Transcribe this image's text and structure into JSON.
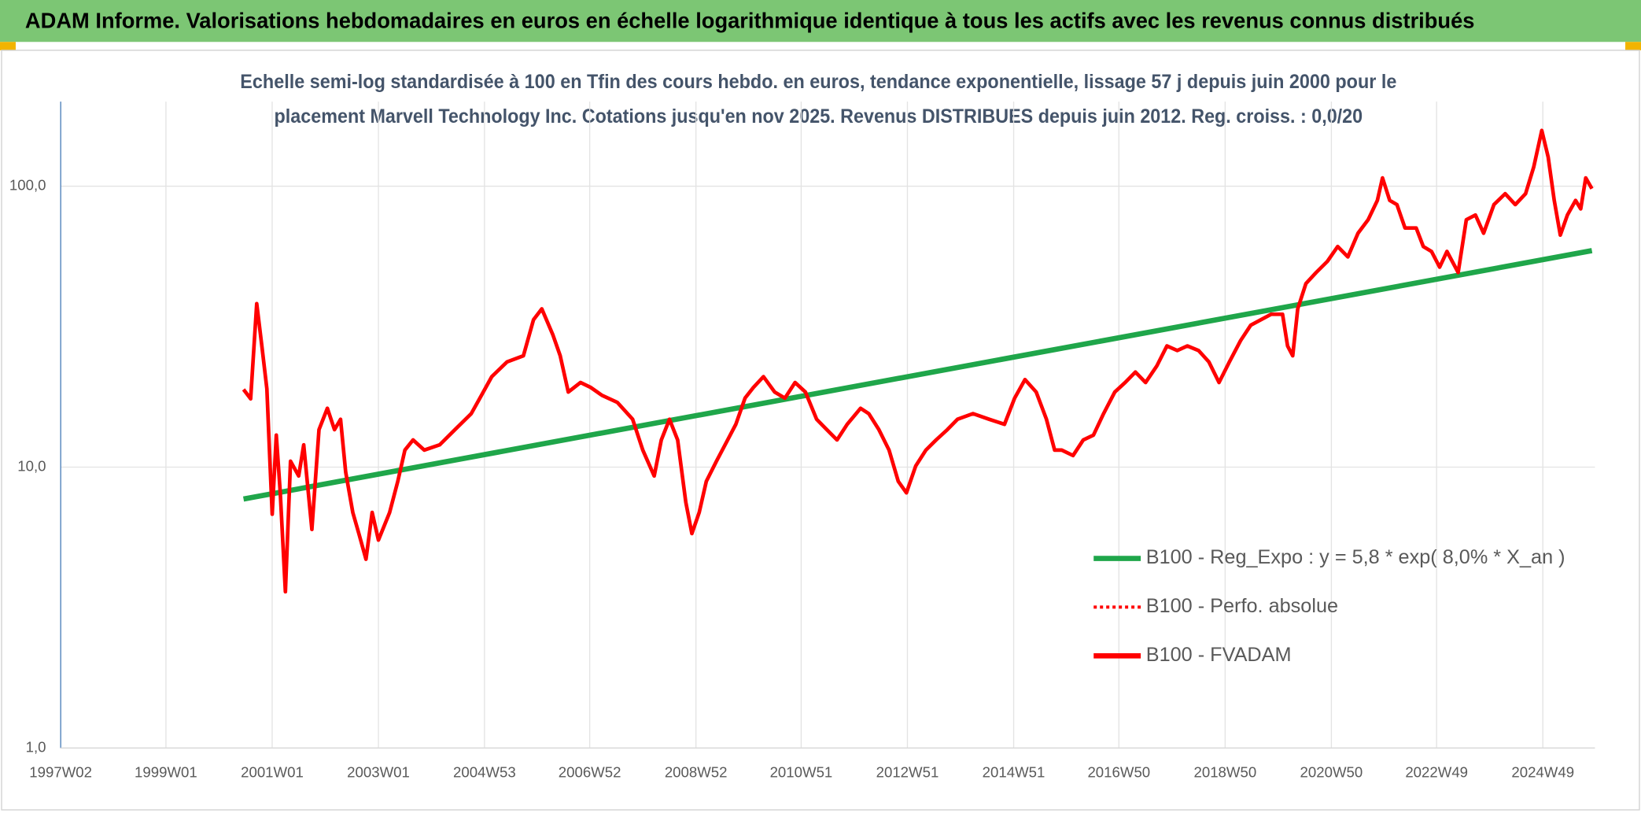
{
  "chart_data": {
    "type": "line",
    "title": "ADAM Informe. Valorisations hebdomadaires en euros en échelle logarithmique identique à tous les actifs avec les revenus connus distribués",
    "subtitle": [
      "Echelle semi-log standardisée à 100 en Tfin des cours hebdo. en euros, tendance exponentielle, lissage 57 j depuis juin 2000 pour le",
      "placement Marvell Technology Inc. Cotations jusqu'en nov 2025. Revenus DISTRIBUES depuis juin 2012. Reg. croiss. : 0,0/20"
    ],
    "log_y": true,
    "grid": true,
    "legend": "lower right",
    "ylim": [
      1,
      200
    ],
    "yticks": [
      {
        "value": 1,
        "label": "1,0"
      },
      {
        "value": 10,
        "label": "10,0"
      },
      {
        "value": 100,
        "label": "100,0"
      }
    ],
    "xlim": [
      "1997W02",
      "2025W48"
    ],
    "xticks": [
      "1997W02",
      "1999W01",
      "2001W01",
      "2003W01",
      "2004W53",
      "2006W52",
      "2008W52",
      "2010W51",
      "2012W51",
      "2014W51",
      "2016W50",
      "2018W50",
      "2020W50",
      "2022W49",
      "2024W49"
    ],
    "series": [
      {
        "name": "B100 - Reg_Expo : y = 5,8 * exp( 8,0% *  X_an )",
        "color": "#1fa64a",
        "style": "solid",
        "x": [
          "2000W25",
          "2025W45"
        ],
        "values": [
          7.7,
          59
        ]
      },
      {
        "name": "B100 - Perfo. absolue",
        "color": "#ff0000",
        "style": "dotted",
        "x": [],
        "values": []
      },
      {
        "name": "B100 - FVADAM",
        "color": "#ff0000",
        "style": "solid",
        "x": [
          "2000W25",
          "2000W32",
          "2000W38",
          "2000W43",
          "2000W48",
          "2000W51",
          "2001W01",
          "2001W05",
          "2001W09",
          "2001W14",
          "2001W19",
          "2001W27",
          "2001W32",
          "2001W40",
          "2001W47",
          "2002W03",
          "2002W10",
          "2002W16",
          "2002W21",
          "2002W28",
          "2002W34",
          "2002W41",
          "2002W47",
          "2003W01",
          "2003W12",
          "2003W20",
          "2003W27",
          "2003W35",
          "2003W46",
          "2004W09",
          "2004W24",
          "2004W40",
          "2004W50",
          "2005W08",
          "2005W23",
          "2005W39",
          "2005W49",
          "2006W05",
          "2006W16",
          "2006W23",
          "2006W31",
          "2006W43",
          "2007W01",
          "2007W12",
          "2007W27",
          "2007W42",
          "2007W52",
          "2008W11",
          "2008W18",
          "2008W26",
          "2008W34",
          "2008W42",
          "2008W48",
          "2009W03",
          "2009W10",
          "2009W20",
          "2009W31",
          "2009W39",
          "2009W48",
          "2010W04",
          "2010W14",
          "2010W25",
          "2010W35",
          "2010W45",
          "2011W03",
          "2011W14",
          "2011W24",
          "2011W34",
          "2011W44",
          "2012W05",
          "2012W13",
          "2012W23",
          "2012W33",
          "2012W42",
          "2012W50",
          "2013W07",
          "2013W17",
          "2013W27",
          "2013W38",
          "2013W48",
          "2014W11",
          "2014W27",
          "2014W42",
          "2014W52",
          "2015W10",
          "2015W21",
          "2015W31",
          "2015W39",
          "2015W46",
          "2016W05",
          "2016W15",
          "2016W25",
          "2016W35",
          "2016W46",
          "2017W04",
          "2017W14",
          "2017W24",
          "2017W35",
          "2017W45",
          "2018W03",
          "2018W13",
          "2018W24",
          "2018W34",
          "2018W44",
          "2019W02",
          "2019W13",
          "2019W23",
          "2019W33",
          "2019W43",
          "2020W02",
          "2020W07",
          "2020W12",
          "2020W17",
          "2020W25",
          "2020W35",
          "2020W46",
          "2021W04",
          "2021W14",
          "2021W24",
          "2021W34",
          "2021W43",
          "2021W48",
          "2022W03",
          "2022W10",
          "2022W18",
          "2022W29",
          "2022W36",
          "2022W44",
          "2022W52",
          "2023W07",
          "2023W18",
          "2023W26",
          "2023W35",
          "2023W43",
          "2024W01",
          "2024W12",
          "2024W22",
          "2024W32",
          "2024W40",
          "2024W48",
          "2025W02",
          "2025W08",
          "2025W14",
          "2025W21",
          "2025W29",
          "2025W34",
          "2025W39",
          "2025W45"
        ],
        "values": [
          18.9,
          17.5,
          38.2,
          27,
          19,
          10.5,
          6.8,
          13,
          8.1,
          3.6,
          10.5,
          9.3,
          12,
          6,
          13.6,
          16.2,
          13.6,
          14.8,
          9.6,
          6.9,
          5.8,
          4.7,
          6.9,
          5.5,
          6.9,
          8.9,
          11.5,
          12.5,
          11.5,
          12,
          13.6,
          15.5,
          18,
          21,
          23.7,
          24.9,
          33.5,
          36.6,
          29.5,
          24.9,
          18.5,
          20,
          19.2,
          18,
          17,
          14.8,
          11.5,
          9.3,
          12.5,
          14.8,
          12.5,
          7.5,
          5.8,
          6.9,
          8.9,
          10.5,
          12.5,
          14.2,
          17.6,
          19.2,
          21,
          18.5,
          17.6,
          20,
          18.5,
          14.8,
          13.6,
          12.5,
          14.2,
          16.2,
          15.5,
          13.6,
          11.5,
          8.9,
          8.1,
          10.1,
          11.5,
          12.5,
          13.6,
          14.8,
          15.5,
          14.8,
          14.2,
          17.6,
          20.5,
          18.5,
          14.8,
          11.5,
          11.5,
          11,
          12.5,
          13,
          15.5,
          18.5,
          20,
          21.8,
          20,
          22.9,
          27,
          26,
          27,
          26,
          23.7,
          20,
          23.7,
          28.2,
          32,
          33.5,
          35,
          35,
          27,
          24.9,
          36.6,
          45,
          49.3,
          54,
          61,
          56,
          68,
          76,
          89,
          107,
          89,
          86,
          71,
          71,
          61,
          58.6,
          51.5,
          58.6,
          49.3,
          76,
          79,
          68,
          86,
          94,
          86,
          94,
          117,
          158,
          127,
          89,
          67,
          79,
          89,
          83,
          107,
          98
        ]
      }
    ]
  }
}
